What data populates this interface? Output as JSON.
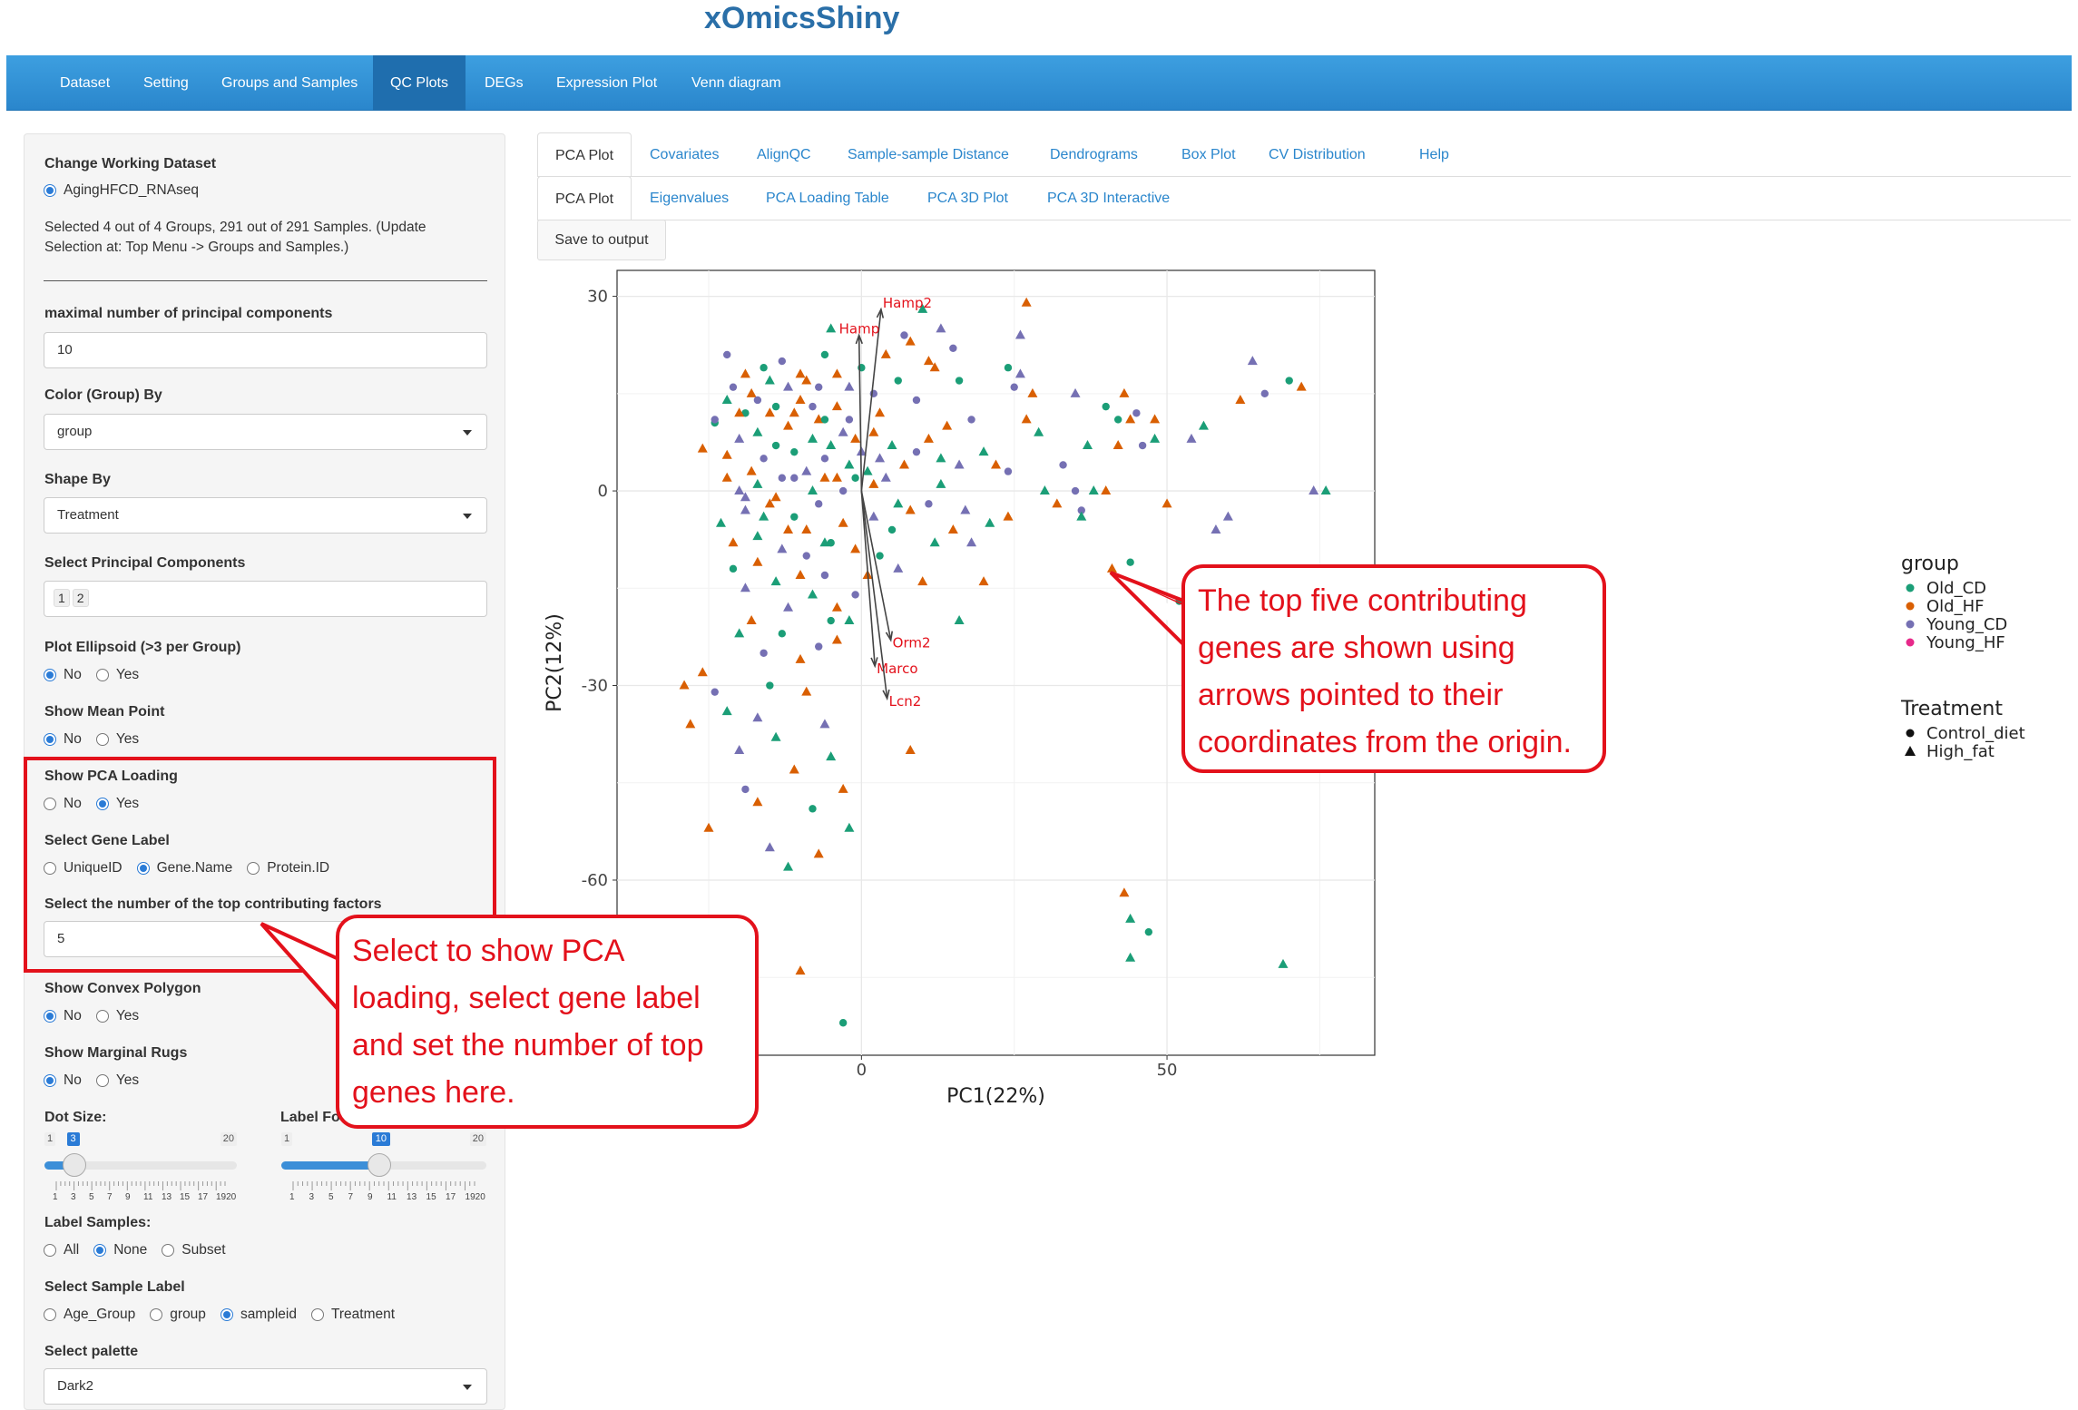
{
  "app": {
    "title": "xOmicsShiny"
  },
  "nav": {
    "items": [
      "Dataset",
      "Setting",
      "Groups and Samples",
      "QC Plots",
      "DEGs",
      "Expression Plot",
      "Venn diagram"
    ],
    "active": "QC Plots"
  },
  "sidebar": {
    "working_dataset_label": "Change Working Dataset",
    "working_dataset_option": "AgingHFCD_RNAseq",
    "selection_note_1": "Selected 4 out of 4 Groups, 291 out of 291 Samples. (Update",
    "selection_note_2": "Selection at: Top Menu -> Groups and Samples.)",
    "max_pc_label": "maximal number of principal components",
    "max_pc_value": "10",
    "color_by_label": "Color (Group) By",
    "color_by_value": "group",
    "shape_by_label": "Shape By",
    "shape_by_value": "Treatment",
    "select_pc_label": "Select Principal Components",
    "select_pc_values": [
      "1",
      "2"
    ],
    "ellipsoid_label": "Plot Ellipsoid (>3 per Group)",
    "mean_point_label": "Show Mean Point",
    "pca_loading_label": "Show PCA Loading",
    "gene_label_label": "Select Gene Label",
    "gene_label_options": [
      "UniqueID",
      "Gene.Name",
      "Protein.ID"
    ],
    "top_factors_label": "Select the number of the top contributing factors",
    "top_factors_value": "5",
    "convex_polygon_label": "Show Convex Polygon",
    "marginal_rugs_label": "Show Marginal Rugs",
    "dot_size_label": "Dot Size:",
    "label_font_label": "Label Fo",
    "dot_size": {
      "min": "1",
      "max": "20",
      "value": "3",
      "fraction": 0.105
    },
    "label_font": {
      "min": "1",
      "max": "20",
      "value": "10",
      "fraction": 0.474
    },
    "slider_ticks": [
      "1",
      "3",
      "5",
      "7",
      "9",
      "11",
      "13",
      "15",
      "17",
      "1920"
    ],
    "label_samples_label": "Label Samples:",
    "label_samples_options": [
      "All",
      "None",
      "Subset"
    ],
    "sample_label_label": "Select Sample Label",
    "sample_label_options": [
      "Age_Group",
      "group",
      "sampleid",
      "Treatment"
    ],
    "palette_label": "Select palette",
    "palette_value": "Dark2",
    "no": "No",
    "yes": "Yes"
  },
  "tabs": {
    "row1": [
      "PCA Plot",
      "Covariates",
      "AlignQC",
      "Sample-sample Distance",
      "Dendrograms",
      "Box Plot",
      "CV Distribution",
      "Help"
    ],
    "row2": [
      "PCA Plot",
      "Eigenvalues",
      "PCA Loading Table",
      "PCA 3D Plot",
      "PCA 3D Interactive"
    ],
    "save_label": "Save to output"
  },
  "colors": {
    "Old_CD": "#1b9e77",
    "Old_HF": "#d95f02",
    "Young_CD": "#7570b3",
    "Young_HF": "#e7298a",
    "callout": "#e3111b"
  },
  "chart_data": {
    "type": "scatter",
    "xlabel": "PC1(22%)",
    "ylabel": "PC2(12%)",
    "xlim": [
      -40,
      84
    ],
    "ylim": [
      -87,
      34
    ],
    "xticks": [
      0,
      50
    ],
    "yticks": [
      30,
      0,
      -30,
      -60
    ],
    "legend_placement": "right",
    "legend_group_title": "group",
    "legend_groups": [
      "Old_CD",
      "Old_HF",
      "Young_CD",
      "Young_HF"
    ],
    "legend_shape_title": "Treatment",
    "legend_shapes": [
      "Control_diet",
      "High_fat"
    ],
    "loadings": [
      {
        "name": "Hamp2",
        "x": 3.2,
        "y": 28
      },
      {
        "name": "Hamp",
        "x": -0.4,
        "y": 24
      },
      {
        "name": "Orm2",
        "x": 4.8,
        "y": -23
      },
      {
        "name": "Marco",
        "x": 2.2,
        "y": -27
      },
      {
        "name": "Lcn2",
        "x": 4.2,
        "y": -32
      }
    ],
    "points": [
      [
        -43,
        8.5,
        0,
        0
      ],
      [
        -26,
        6.5,
        0,
        1
      ],
      [
        -24,
        10.5,
        0,
        0
      ],
      [
        -22,
        5.5,
        0,
        1
      ],
      [
        -20,
        8,
        0,
        2
      ],
      [
        -19,
        12,
        0,
        0
      ],
      [
        -18,
        3,
        0,
        1
      ],
      [
        -17,
        9,
        0,
        0
      ],
      [
        -16,
        5,
        0,
        2
      ],
      [
        -15,
        12,
        0,
        1
      ],
      [
        -14,
        7,
        0,
        0
      ],
      [
        -13,
        2,
        0,
        2
      ],
      [
        -12,
        10,
        0,
        1
      ],
      [
        -11,
        6,
        0,
        0
      ],
      [
        -10,
        14,
        0,
        1
      ],
      [
        -9,
        3,
        0,
        2
      ],
      [
        -8,
        8,
        0,
        0
      ],
      [
        -7,
        11,
        0,
        1
      ],
      [
        -6,
        5,
        0,
        2
      ],
      [
        -5,
        7,
        0,
        0
      ],
      [
        -4,
        2,
        0,
        1
      ],
      [
        -3,
        9,
        0,
        2
      ],
      [
        -2,
        4,
        0,
        0
      ],
      [
        -1,
        8,
        0,
        1
      ],
      [
        0,
        6,
        0,
        2
      ],
      [
        1,
        3,
        0,
        0
      ],
      [
        2,
        9,
        0,
        1
      ],
      [
        3,
        5,
        0,
        2
      ],
      [
        5,
        7,
        0,
        0
      ],
      [
        7,
        4,
        0,
        1
      ],
      [
        9,
        6,
        0,
        2
      ],
      [
        11,
        8,
        0,
        1
      ],
      [
        13,
        5,
        0,
        0
      ],
      [
        16,
        4,
        0,
        2
      ],
      [
        -21,
        16,
        0,
        2
      ],
      [
        -18,
        15,
        0,
        1
      ],
      [
        -15,
        17,
        0,
        0
      ],
      [
        -12,
        16,
        0,
        2
      ],
      [
        -9,
        17,
        0,
        1
      ],
      [
        -7,
        16,
        0,
        2
      ],
      [
        -23,
        -5,
        0,
        0
      ],
      [
        -21,
        -8,
        0,
        1
      ],
      [
        -19,
        -3,
        0,
        2
      ],
      [
        -17,
        -7,
        0,
        0
      ],
      [
        -15,
        -2,
        0,
        1
      ],
      [
        -13,
        -9,
        0,
        2
      ],
      [
        -11,
        -4,
        0,
        0
      ],
      [
        -9,
        -6,
        0,
        1
      ],
      [
        -7,
        -2,
        0,
        2
      ],
      [
        -5,
        -8,
        0,
        0
      ],
      [
        -3,
        -5,
        0,
        1
      ],
      [
        -21,
        -12,
        0,
        0
      ],
      [
        -19,
        -15,
        0,
        2
      ],
      [
        -17,
        -11,
        0,
        1
      ],
      [
        -14,
        -14,
        0,
        0
      ],
      [
        -12,
        -18,
        0,
        2
      ],
      [
        -10,
        -13,
        0,
        1
      ],
      [
        -8,
        -16,
        0,
        0
      ],
      [
        -6,
        -13,
        0,
        2
      ],
      [
        -4,
        -18,
        0,
        1
      ],
      [
        -20,
        -22,
        0,
        0
      ],
      [
        -18,
        -20,
        0,
        1
      ],
      [
        -16,
        -25,
        0,
        2
      ],
      [
        -13,
        -22,
        0,
        0
      ],
      [
        -10,
        -26,
        0,
        1
      ],
      [
        -7,
        -24,
        0,
        2
      ],
      [
        -5,
        -20,
        0,
        0
      ],
      [
        -15,
        -30,
        0,
        0
      ],
      [
        -9,
        -31,
        0,
        1
      ],
      [
        -17,
        -35,
        0,
        2
      ],
      [
        -29,
        -30,
        0,
        1
      ],
      [
        -25,
        -52,
        0,
        1
      ],
      [
        -17,
        -48,
        0,
        1
      ],
      [
        -12,
        -58,
        0,
        0
      ],
      [
        -10,
        -74,
        0,
        1
      ],
      [
        -3,
        -82,
        0,
        0
      ],
      [
        10,
        28,
        0,
        0
      ],
      [
        8,
        23,
        0,
        1
      ],
      [
        9,
        14,
        0,
        2
      ],
      [
        12,
        19,
        0,
        1
      ],
      [
        15,
        22,
        0,
        2
      ],
      [
        16,
        17,
        0,
        0
      ],
      [
        14,
        10,
        0,
        1
      ],
      [
        18,
        11,
        0,
        2
      ],
      [
        20,
        6,
        0,
        0
      ],
      [
        22,
        4,
        0,
        1
      ],
      [
        24,
        3,
        0,
        2
      ],
      [
        27,
        11,
        0,
        1
      ],
      [
        29,
        9,
        0,
        0
      ],
      [
        26,
        18,
        0,
        2
      ],
      [
        30,
        0,
        0,
        0
      ],
      [
        32,
        -2,
        0,
        1
      ],
      [
        35,
        0,
        0,
        2
      ],
      [
        38,
        0,
        0,
        0
      ],
      [
        40,
        0,
        0,
        1
      ],
      [
        25,
        16,
        0,
        2
      ],
      [
        27,
        29,
        0,
        1
      ],
      [
        26,
        24,
        0,
        2
      ],
      [
        24,
        19,
        0,
        0
      ],
      [
        28,
        15,
        0,
        1
      ],
      [
        6,
        -12,
        0,
        2
      ],
      [
        10,
        -14,
        0,
        1
      ],
      [
        12,
        -8,
        0,
        0
      ],
      [
        15,
        -6,
        0,
        1
      ],
      [
        17,
        -3,
        0,
        2
      ],
      [
        21,
        -5,
        0,
        0
      ],
      [
        24,
        -4,
        0,
        1
      ],
      [
        16,
        -20,
        0,
        0
      ],
      [
        18,
        -8,
        0,
        2
      ],
      [
        20,
        -14,
        0,
        1
      ],
      [
        33,
        4,
        0,
        2
      ],
      [
        37,
        7,
        0,
        0
      ],
      [
        42,
        7,
        0,
        1
      ],
      [
        45,
        12,
        0,
        2
      ],
      [
        48,
        11,
        0,
        1
      ],
      [
        35,
        15,
        0,
        2
      ],
      [
        40,
        13,
        0,
        0
      ],
      [
        44,
        11,
        0,
        1
      ],
      [
        36,
        -3,
        0,
        2
      ],
      [
        36,
        -4,
        0,
        0
      ],
      [
        41,
        -12,
        0,
        1
      ],
      [
        42,
        11,
        0,
        0
      ],
      [
        43,
        15,
        0,
        1
      ],
      [
        46,
        7,
        0,
        2
      ],
      [
        48,
        8,
        0,
        0
      ],
      [
        52,
        -17,
        0,
        0
      ],
      [
        56,
        -16,
        0,
        1
      ],
      [
        60,
        -4,
        0,
        2
      ],
      [
        64,
        20,
        0,
        2
      ],
      [
        62,
        14,
        0,
        1
      ],
      [
        66,
        15,
        0,
        2
      ],
      [
        70,
        17,
        0,
        0
      ],
      [
        72,
        16,
        0,
        1
      ],
      [
        54,
        8,
        0,
        2
      ],
      [
        56,
        10,
        0,
        0
      ],
      [
        50,
        -2,
        0,
        1
      ],
      [
        44,
        -11,
        0,
        0
      ],
      [
        58,
        -6,
        0,
        2
      ],
      [
        68,
        -13,
        0,
        1
      ],
      [
        74,
        0,
        0,
        2
      ],
      [
        76,
        0,
        0,
        0
      ],
      [
        86,
        0,
        0,
        2
      ],
      [
        47,
        -68,
        0,
        0
      ],
      [
        44,
        -72,
        0,
        0
      ],
      [
        69,
        -73,
        0,
        0
      ],
      [
        43,
        -62,
        0,
        1
      ],
      [
        44,
        -66,
        0,
        0
      ],
      [
        8,
        -40,
        0,
        1
      ],
      [
        -7,
        -56,
        0,
        1
      ],
      [
        -2,
        -52,
        0,
        0
      ],
      [
        -3,
        -46,
        0,
        1
      ],
      [
        -5,
        -41,
        0,
        0
      ],
      [
        -6,
        -36,
        0,
        2
      ],
      [
        -4,
        -23,
        0,
        1
      ],
      [
        -2,
        -20,
        0,
        0
      ],
      [
        -1,
        -16,
        0,
        2
      ],
      [
        1,
        -13,
        0,
        1
      ],
      [
        3,
        -10,
        0,
        0
      ],
      [
        -26,
        -28,
        0,
        1
      ],
      [
        -24,
        -31,
        0,
        2
      ],
      [
        -22,
        -34,
        0,
        0
      ],
      [
        -28,
        -36,
        0,
        1
      ],
      [
        -20,
        -40,
        0,
        2
      ],
      [
        -14,
        -38,
        0,
        0
      ],
      [
        -11,
        -43,
        0,
        1
      ],
      [
        -19,
        -46,
        0,
        2
      ],
      [
        -8,
        -49,
        0,
        0
      ],
      [
        -15,
        -55,
        0,
        2
      ],
      [
        -24,
        11,
        0,
        2
      ],
      [
        -22,
        14,
        0,
        0
      ],
      [
        -20,
        12,
        0,
        1
      ],
      [
        -17,
        14,
        0,
        2
      ],
      [
        -14,
        13,
        0,
        0
      ],
      [
        -11,
        12,
        0,
        1
      ],
      [
        -8,
        13,
        0,
        2
      ],
      [
        -6,
        11,
        0,
        0
      ],
      [
        -4,
        13,
        0,
        1
      ],
      [
        -2,
        11,
        0,
        2
      ],
      [
        -22,
        2,
        0,
        1
      ],
      [
        -20,
        0,
        0,
        2
      ],
      [
        -17,
        1,
        0,
        0
      ],
      [
        -14,
        -1,
        0,
        1
      ],
      [
        -11,
        2,
        0,
        2
      ],
      [
        -8,
        0,
        0,
        0
      ],
      [
        -6,
        2,
        0,
        1
      ],
      [
        -3,
        0,
        0,
        2
      ],
      [
        -1,
        2,
        0,
        0
      ],
      [
        2,
        1,
        0,
        1
      ],
      [
        4,
        2,
        0,
        2
      ],
      [
        6,
        -2,
        0,
        0
      ],
      [
        -19,
        -1,
        0,
        2
      ],
      [
        -16,
        -4,
        0,
        0
      ],
      [
        -12,
        -6,
        0,
        1
      ],
      [
        -9,
        -10,
        0,
        2
      ],
      [
        -6,
        -8,
        0,
        0
      ],
      [
        -1,
        -9,
        0,
        1
      ],
      [
        2,
        -4,
        0,
        2
      ],
      [
        5,
        -6,
        0,
        0
      ],
      [
        8,
        -3,
        0,
        1
      ],
      [
        11,
        -2,
        0,
        2
      ],
      [
        13,
        1,
        0,
        0
      ],
      [
        11,
        20,
        0,
        1
      ],
      [
        13,
        25,
        0,
        2
      ],
      [
        6,
        17,
        0,
        0
      ],
      [
        4,
        21,
        0,
        1
      ],
      [
        2,
        15,
        0,
        2
      ],
      [
        -6,
        21,
        0,
        0
      ],
      [
        -4,
        18,
        0,
        1
      ],
      [
        -2,
        16,
        0,
        2
      ],
      [
        0,
        19,
        0,
        0
      ],
      [
        -10,
        18,
        0,
        1
      ],
      [
        -13,
        20,
        0,
        2
      ],
      [
        -16,
        19,
        0,
        0
      ],
      [
        -19,
        18,
        0,
        1
      ],
      [
        -22,
        21,
        0,
        2
      ],
      [
        -5,
        25,
        0,
        0
      ],
      [
        7,
        24,
        0,
        2
      ],
      [
        3,
        12,
        0,
        1
      ]
    ]
  },
  "callouts": {
    "right": [
      "The top five contributing",
      "genes are shown using",
      "arrows pointed to their",
      "coordinates from the origin."
    ],
    "left": [
      "Select to show PCA",
      "loading, select gene label",
      "and set the number of top",
      "genes here."
    ]
  }
}
